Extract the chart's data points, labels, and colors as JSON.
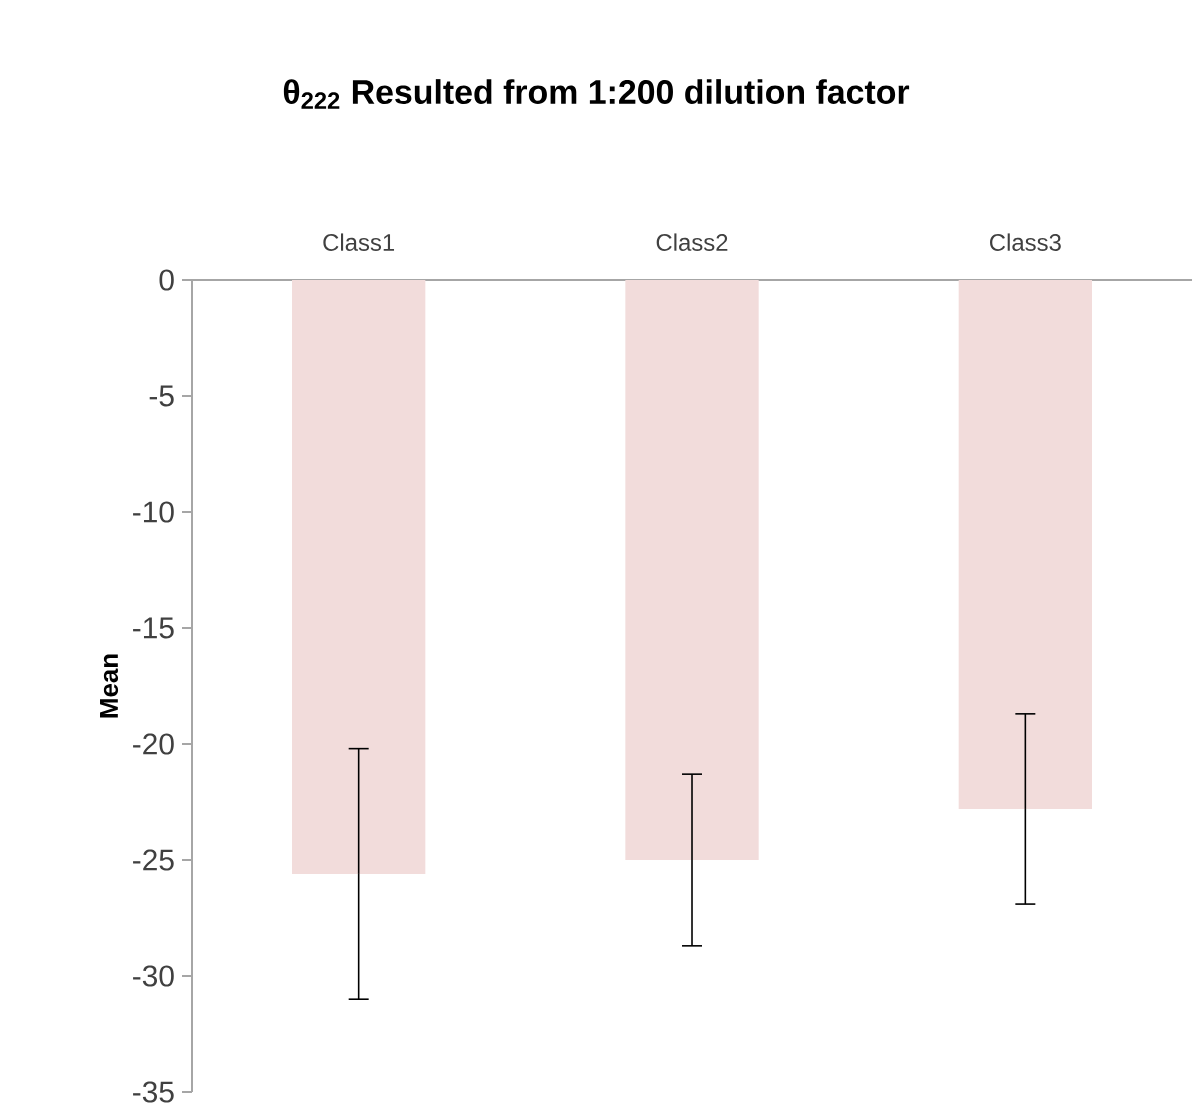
{
  "chart_data": {
    "type": "bar",
    "title": "θ$_{222}$ Resulted from 1:200 dilution factor",
    "ylabel": "Mean",
    "categories": [
      "Class1",
      "Class2",
      "Class3"
    ],
    "values": [
      -25.6,
      -25.0,
      -22.8
    ],
    "errors": [
      5.4,
      3.7,
      4.1
    ],
    "color": "#f2dcdb",
    "ylim": [
      -35,
      0
    ],
    "yticks": [
      -35,
      -30,
      -25,
      -20,
      -15,
      -10,
      -5,
      0
    ]
  }
}
